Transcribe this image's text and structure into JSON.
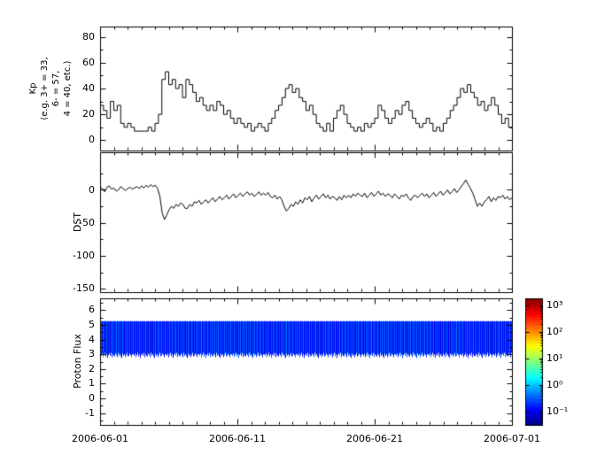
{
  "figure": {
    "background": "#ffffff",
    "line_color": "#000000"
  },
  "x_axis": {
    "tick_labels": [
      "2006-06-01",
      "2006-06-11",
      "2006-06-21",
      "2006-07-01"
    ]
  },
  "kp_panel": {
    "ylabel_lines": [
      "Kp",
      "(e.g. 3+ = 33,",
      "6- = 57,",
      "4 = 40, etc.)"
    ],
    "ytick_labels": [
      "80",
      "60",
      "40",
      "20",
      "0"
    ]
  },
  "dst_panel": {
    "ylabel": "DST",
    "ytick_labels": [
      "0",
      "-50",
      "-100",
      "-150"
    ]
  },
  "proton_panel": {
    "ylabel": "Proton Flux",
    "ytick_labels": [
      "6",
      "5",
      "4",
      "3",
      "2",
      "1",
      "0",
      "-1"
    ]
  },
  "colorbar": {
    "tick_labels": [
      "10³",
      "10²",
      "10¹",
      "10⁰",
      "10⁻¹"
    ]
  },
  "chart_data": [
    {
      "type": "line",
      "style": "steps",
      "title": "",
      "ylabel": "Kp (e.g. 3+ = 33, 6- = 57, 4 = 40, etc.)",
      "x_range": [
        "2006-06-01",
        "2006-07-01"
      ],
      "x_tick_labels": [
        "2006-06-01",
        "2006-06-11",
        "2006-06-21",
        "2006-07-01"
      ],
      "ylim": [
        -8,
        88
      ],
      "yticks": [
        0,
        20,
        40,
        60,
        80
      ],
      "yticks_minor_step": 10,
      "grid": false,
      "line_color": "#000000",
      "values": [
        27,
        23,
        17,
        30,
        23,
        27,
        13,
        10,
        13,
        10,
        7,
        7,
        7,
        7,
        10,
        7,
        13,
        20,
        47,
        53,
        43,
        47,
        40,
        43,
        33,
        47,
        43,
        37,
        30,
        33,
        27,
        23,
        27,
        23,
        30,
        27,
        20,
        23,
        17,
        13,
        17,
        13,
        10,
        13,
        7,
        10,
        13,
        10,
        7,
        13,
        17,
        23,
        27,
        33,
        40,
        43,
        37,
        40,
        33,
        30,
        23,
        27,
        20,
        13,
        10,
        7,
        13,
        7,
        17,
        23,
        27,
        20,
        13,
        10,
        7,
        10,
        7,
        13,
        10,
        13,
        17,
        27,
        23,
        17,
        13,
        17,
        23,
        20,
        27,
        30,
        23,
        17,
        13,
        10,
        13,
        17,
        13,
        7,
        10,
        7,
        13,
        17,
        23,
        27,
        33,
        40,
        37,
        43,
        37,
        33,
        27,
        30,
        23,
        27,
        33,
        27,
        20,
        13,
        17,
        10
      ]
    },
    {
      "type": "line",
      "style": "line",
      "title": "",
      "ylabel": "DST",
      "x_range": [
        "2006-06-01",
        "2006-07-01"
      ],
      "ylim": [
        -155,
        57
      ],
      "yticks": [
        0,
        -50,
        -100,
        -150
      ],
      "yticks_minor": [
        25,
        -25,
        -75,
        -125
      ],
      "grid": false,
      "line_color": "#000000",
      "values": [
        5,
        2,
        -3,
        4,
        6,
        1,
        3,
        -2,
        0,
        5,
        2,
        -1,
        2,
        4,
        1,
        3,
        5,
        2,
        6,
        3,
        7,
        4,
        8,
        5,
        7,
        2,
        -10,
        -35,
        -45,
        -38,
        -30,
        -25,
        -28,
        -22,
        -25,
        -20,
        -22,
        -28,
        -28,
        -22,
        -25,
        -18,
        -20,
        -16,
        -22,
        -18,
        -15,
        -20,
        -16,
        -12,
        -18,
        -14,
        -10,
        -15,
        -12,
        -8,
        -14,
        -10,
        -6,
        -12,
        -8,
        -5,
        -10,
        -6,
        -3,
        -8,
        -5,
        -10,
        -7,
        -3,
        -8,
        -5,
        -8,
        -4,
        -10,
        -12,
        -8,
        -14,
        -10,
        -15,
        -25,
        -32,
        -28,
        -22,
        -25,
        -18,
        -22,
        -15,
        -20,
        -12,
        -15,
        -10,
        -18,
        -12,
        -8,
        -14,
        -10,
        -6,
        -12,
        -8,
        -14,
        -10,
        -12,
        -16,
        -10,
        -15,
        -8,
        -12,
        -8,
        -12,
        -6,
        -10,
        -5,
        -8,
        -10,
        -5,
        -12,
        -8,
        -4,
        -10,
        -6,
        -2,
        -8,
        -5,
        -10,
        -6,
        -8,
        -12,
        -6,
        -10,
        -14,
        -8,
        -10,
        -6,
        -12,
        -16,
        -10,
        -8,
        -12,
        -8,
        -5,
        -10,
        -6,
        -12,
        -8,
        -4,
        -10,
        -6,
        -2,
        -8,
        -5,
        0,
        -6,
        -3,
        2,
        -4,
        0,
        5,
        10,
        15,
        8,
        2,
        -5,
        -15,
        -25,
        -20,
        -25,
        -18,
        -15,
        -10,
        -18,
        -12,
        -16,
        -10,
        -12,
        -8,
        -14,
        -10,
        -15,
        -12
      ]
    },
    {
      "type": "heatmap",
      "title": "",
      "ylabel": "Proton Flux",
      "x_range": [
        "2006-06-01",
        "2006-07-01"
      ],
      "ylim": [
        -1.8,
        6.8
      ],
      "yticks": [
        6,
        5,
        4,
        3,
        2,
        1,
        0,
        -1
      ],
      "grid": false,
      "band_top": 5.25,
      "band_bottoms": [
        3.0,
        2.9,
        3.05,
        2.8,
        2.95,
        3.1,
        2.85,
        3.0,
        2.75,
        2.95,
        3.05,
        2.9,
        3.1,
        2.8,
        3.0,
        2.9,
        2.85,
        3.05,
        2.95,
        2.8,
        3.1,
        2.9,
        3.0,
        2.85,
        2.75,
        3.05,
        2.9,
        3.0,
        2.8,
        2.95,
        3.1,
        2.85,
        2.9,
        3.05,
        2.95,
        2.8,
        3.0
      ],
      "flux": [
        0.12,
        0.31,
        0.09,
        0.45,
        0.15,
        0.22,
        0.08,
        0.38,
        0.18,
        0.11,
        0.27,
        0.07,
        0.33,
        0.14,
        0.42,
        0.1,
        0.24,
        0.16,
        0.52,
        0.09,
        0.2,
        0.35,
        0.12,
        0.28,
        0.08,
        0.41,
        0.17,
        0.11,
        0.3,
        0.13,
        0.48,
        0.1,
        0.22,
        0.36,
        0.09,
        0.26,
        0.15,
        0.44,
        0.12,
        0.19,
        0.32,
        0.08,
        0.25,
        0.14,
        0.39,
        0.11,
        0.29,
        0.17
      ],
      "colorbar": {
        "scale": "log",
        "colormap": "jet",
        "tick_labels": [
          "10³",
          "10²",
          "10¹",
          "10⁰",
          "10⁻¹"
        ],
        "tick_exponents": [
          3,
          2,
          1,
          0,
          -1
        ],
        "vmin_log": -1.5,
        "vmax_log": 3.25,
        "position": "right"
      }
    }
  ]
}
